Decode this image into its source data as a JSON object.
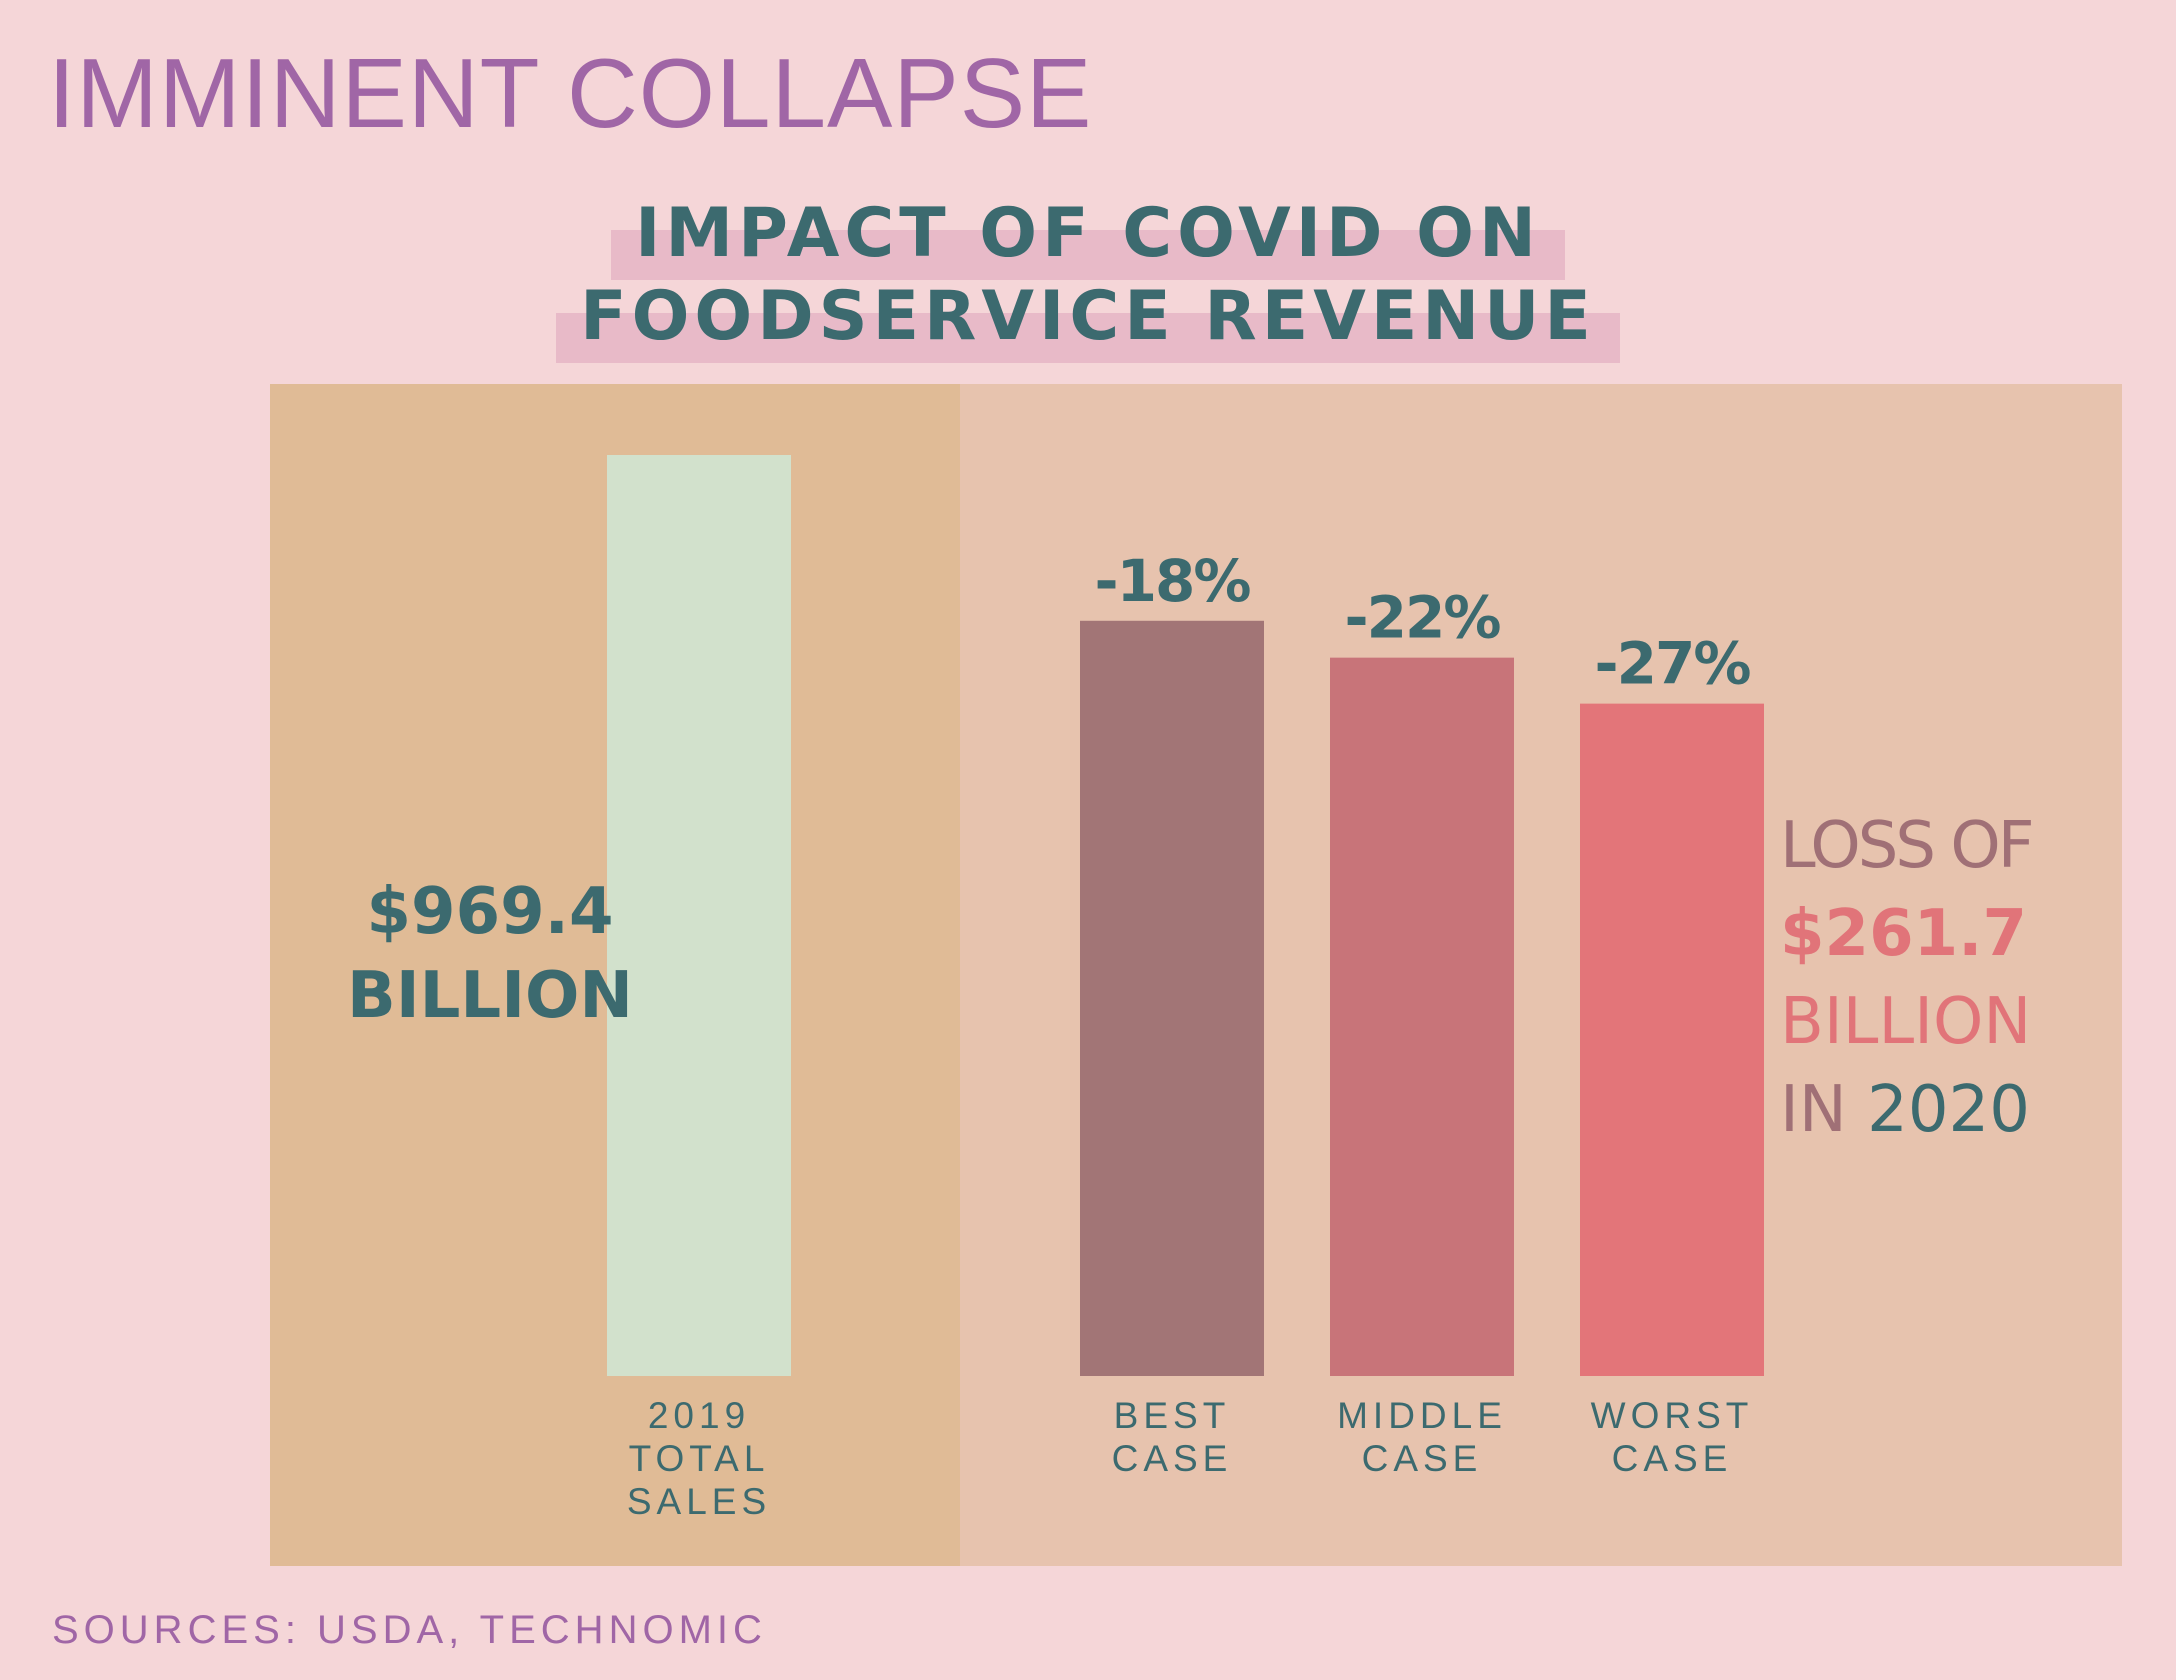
{
  "headline": "IMMINENT COLLAPSE",
  "subtitle": {
    "line1": "IMPACT OF COVID ON",
    "line2": "FOODSERVICE REVENUE"
  },
  "baseline": {
    "value_line1": "$969.4",
    "value_line2": "BILLION"
  },
  "loss": {
    "line1": "LOSS OF",
    "amount": "$261.7",
    "line3": "BILLION",
    "line4_prefix": "IN",
    "line4_year": "2020"
  },
  "sources": "SOURCES: USDA, TECHNOMIC",
  "colors": {
    "background": "#f5d6d8",
    "panel_left": "#e0bb96",
    "panel_right": "#e7c3ae",
    "headline": "#a066a6",
    "teal_text": "#3c6a6f",
    "highlight": "#e8bac8"
  },
  "chart_data": {
    "type": "bar",
    "categories": [
      [
        "2019",
        "TOTAL",
        "SALES"
      ],
      [
        "BEST",
        "CASE"
      ],
      [
        "MIDDLE",
        "CASE"
      ],
      [
        "WORST",
        "CASE"
      ]
    ],
    "values": [
      969.4,
      794.9,
      756.1,
      707.7
    ],
    "data_labels": [
      "",
      "-18%",
      "-22%",
      "-27%"
    ],
    "colors": [
      "#d2e1cc",
      "#a27576",
      "#c87479",
      "#e37579"
    ],
    "ylim": [
      0,
      969.4
    ],
    "grid": false,
    "legend": "none"
  }
}
